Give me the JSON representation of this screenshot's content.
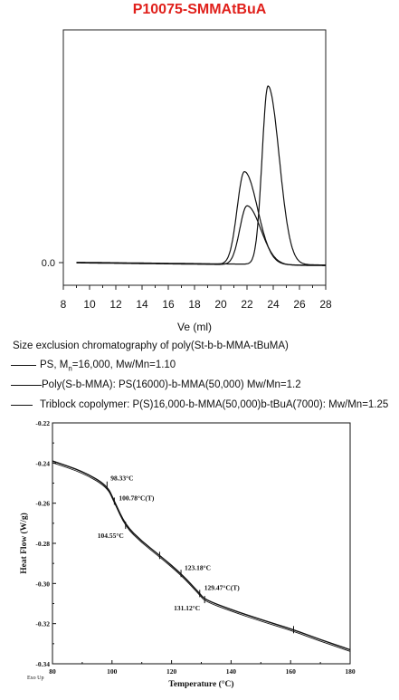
{
  "title": "P10075-SMMAtBuA",
  "caption": "Size exclusion chromatography of poly(St-b-b-MMA-tBuMA)",
  "legend": [
    {
      "pre": "PS, M",
      "sub": "n",
      "post": "=16,000,  Mw/Mn=1.10"
    },
    {
      "pre": "Poly(S-b-MMA): PS(16000)-b-MMA(50,000)  Mw/Mn=1.2",
      "sub": "",
      "post": ""
    },
    {
      "pre": "Triblock copolymer:  P(S)16,000-b-MMA(50,000)b-tBuA(7000): Mw/Mn=1.25",
      "sub": "",
      "post": ""
    }
  ],
  "chart_data": [
    {
      "type": "line",
      "title": "P10075-SMMAtBuA",
      "xlabel": "Ve (ml)",
      "ylabel": "",
      "xlim": [
        8,
        28
      ],
      "xticks": [
        8,
        10,
        12,
        14,
        16,
        18,
        20,
        22,
        24,
        26,
        28
      ],
      "yticks": [
        {
          "value": 0.0,
          "label": "0.0"
        }
      ],
      "series": [
        {
          "name": "PS, Mn=16,000,  Mw/Mn=1.10",
          "peak_x": 23.6,
          "peak_y": 1.0
        },
        {
          "name": "Poly(S-b-MMA): PS(16000)-b-MMA(50,000)  Mw/Mn=1.2",
          "peak_x": 21.8,
          "peak_y": 0.52
        },
        {
          "name": "Triblock copolymer:  P(S)16,000-b-MMA(50,000)b-tBuA(7000): Mw/Mn=1.25",
          "peak_x": 22.0,
          "peak_y": 0.33
        }
      ]
    },
    {
      "type": "line",
      "xlabel": "Temperature (°C)",
      "ylabel": "Heat Flow (W/g)",
      "corner_label": "Exo Up",
      "xlim": [
        80,
        180
      ],
      "ylim": [
        -0.34,
        -0.22
      ],
      "xticks": [
        80,
        100,
        120,
        140,
        160,
        180
      ],
      "yticks": [
        -0.22,
        -0.24,
        -0.26,
        -0.28,
        -0.3,
        -0.32,
        -0.34
      ],
      "ytick_labels": [
        "-0.22",
        "-0.24",
        "-0.26",
        "-0.28",
        "-0.30",
        "-0.32",
        "-0.34"
      ],
      "curve": [
        [
          80,
          -0.239
        ],
        [
          90,
          -0.244
        ],
        [
          98.33,
          -0.251
        ],
        [
          100.78,
          -0.259
        ],
        [
          104.55,
          -0.271
        ],
        [
          110,
          -0.279
        ],
        [
          116,
          -0.286
        ],
        [
          123.18,
          -0.295
        ],
        [
          129.47,
          -0.305
        ],
        [
          131.12,
          -0.308
        ],
        [
          140,
          -0.313
        ],
        [
          150,
          -0.318
        ],
        [
          161,
          -0.323
        ],
        [
          170,
          -0.328
        ],
        [
          180,
          -0.333
        ]
      ],
      "annotations": [
        {
          "x": 98.33,
          "y": -0.251,
          "label": "98.33°C"
        },
        {
          "x": 100.78,
          "y": -0.259,
          "label": "100.78°C(T)"
        },
        {
          "x": 104.55,
          "y": -0.271,
          "label": "104.55°C"
        },
        {
          "x": 123.18,
          "y": -0.295,
          "label": "123.18°C"
        },
        {
          "x": 129.47,
          "y": -0.305,
          "label": "129.47°C(T)"
        },
        {
          "x": 131.12,
          "y": -0.308,
          "label": "131.12°C"
        }
      ]
    }
  ]
}
